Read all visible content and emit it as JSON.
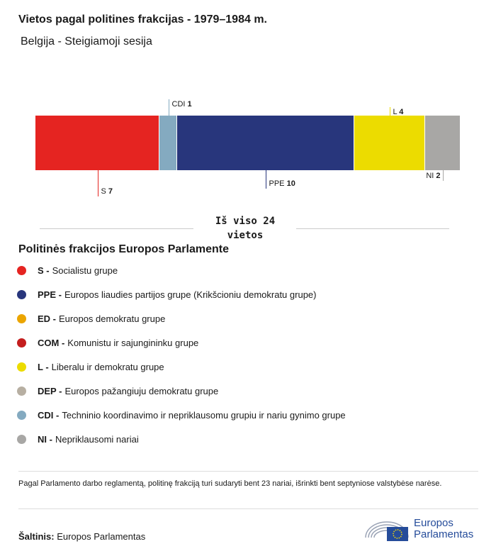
{
  "title": "Vietos pagal politines frakcijas - 1979–1984 m.",
  "subtitle": "Belgija - Steigiamoji sesija",
  "total": {
    "line1": "Iš viso 24",
    "line2": "vietos"
  },
  "chart_data": {
    "type": "bar",
    "orientation": "horizontal-stacked",
    "categories": [
      "S",
      "CDI",
      "PPE",
      "L",
      "NI"
    ],
    "values": [
      7,
      1,
      10,
      4,
      2
    ],
    "colors": [
      "#e52421",
      "#84aac0",
      "#28367c",
      "#ecdc00",
      "#a8a7a5"
    ],
    "total": 24
  },
  "legend": {
    "title": "Politinės frakcijos Europos Parlamente",
    "items": [
      {
        "abbr": "S -",
        "name": "Socialistu grupe",
        "color": "#e52421"
      },
      {
        "abbr": "PPE -",
        "name": "Europos liaudies partijos grupe (Krikšcioniu demokratu grupe)",
        "color": "#28367c"
      },
      {
        "abbr": "ED -",
        "name": "Europos demokratu grupe",
        "color": "#eba500"
      },
      {
        "abbr": "COM -",
        "name": "Komunistu ir sajungininku grupe",
        "color": "#c41e1e"
      },
      {
        "abbr": "L -",
        "name": "Liberalu ir demokratu grupe",
        "color": "#ecdc00"
      },
      {
        "abbr": "DEP -",
        "name": "Europos pažangiuju demokratu grupe",
        "color": "#b7afa2"
      },
      {
        "abbr": "CDI -",
        "name": "Techninio koordinavimo ir nepriklausomu grupiu ir nariu gynimo grupe",
        "color": "#84aac0"
      },
      {
        "abbr": "NI -",
        "name": "Nepriklausomi nariai",
        "color": "#a8a7a5"
      }
    ]
  },
  "note": "Pagal Parlamento darbo reglamentą, politinę frakciją turi sudaryti bent 23 nariai, išrinkti bent septyniose valstybėse narėse.",
  "source": {
    "label": "Šaltinis:",
    "value": "Europos Parlamentas"
  },
  "logo": {
    "line1": "Europos",
    "line2": "Parlamentas"
  }
}
